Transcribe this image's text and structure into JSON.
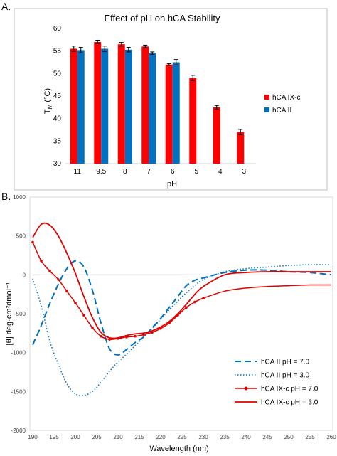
{
  "panels": {
    "a_label": "A.",
    "b_label": "B."
  },
  "chart_data": [
    {
      "type": "bar",
      "title": "Effect of pH on hCA Stability",
      "xlabel": "pH",
      "ylabel_main": "T",
      "ylabel_sub": "M",
      "ylabel_unit": " (°C)",
      "categories": [
        "11",
        "9.5",
        "8",
        "7",
        "6",
        "5",
        "4",
        "3"
      ],
      "ylim": [
        30,
        60
      ],
      "yticks": [
        30,
        35,
        40,
        45,
        50,
        55,
        60
      ],
      "grid": false,
      "legend": "right",
      "series": [
        {
          "name": "hCA IX-c",
          "color": "#ff0000",
          "values": [
            55.5,
            57.0,
            56.5,
            56.0,
            52.0,
            49.0,
            42.5,
            37.0
          ],
          "errors": [
            0.6,
            0.4,
            0.4,
            0.3,
            0.2,
            0.6,
            0.4,
            0.6
          ]
        },
        {
          "name": "hCA II",
          "color": "#0070c0",
          "values": [
            55.2,
            55.5,
            55.3,
            54.5,
            52.5,
            null,
            null,
            null
          ],
          "errors": [
            0.6,
            0.6,
            0.5,
            0.3,
            0.6,
            null,
            null,
            null
          ]
        }
      ]
    },
    {
      "type": "line",
      "xlabel": "Wavelength (nm)",
      "ylabel": "[θ] deg·cm²dmol⁻¹",
      "xlim": [
        190,
        260
      ],
      "ylim": [
        -2000,
        1000
      ],
      "xticks": [
        190,
        195,
        200,
        205,
        210,
        215,
        220,
        225,
        230,
        235,
        240,
        245,
        250,
        255,
        260
      ],
      "yticks": [
        1000,
        500,
        0,
        -500,
        -1000,
        -1500,
        -2000
      ],
      "grid": false,
      "legend": "bottom-right",
      "series": [
        {
          "name": "hCA II pH = 7.0",
          "color": "#0070c0",
          "style": "dashed",
          "x": [
            190,
            192,
            194,
            196,
            198,
            200,
            202,
            204,
            206,
            208,
            210,
            212,
            214,
            216,
            218,
            220,
            222,
            224,
            226,
            228,
            230,
            235,
            240,
            245,
            250,
            255,
            260
          ],
          "y": [
            -900,
            -650,
            -370,
            -120,
            80,
            180,
            100,
            -200,
            -620,
            -950,
            -1030,
            -960,
            -870,
            -800,
            -680,
            -560,
            -420,
            -280,
            -140,
            -70,
            -40,
            30,
            60,
            60,
            40,
            30,
            0
          ]
        },
        {
          "name": "hCA II pH = 3.0",
          "color": "#0070c0",
          "style": "dotted",
          "x": [
            190,
            192,
            194,
            196,
            198,
            200,
            202,
            204,
            206,
            208,
            210,
            212,
            214,
            216,
            218,
            220,
            222,
            224,
            226,
            228,
            230,
            235,
            240,
            245,
            250,
            255,
            260
          ],
          "y": [
            -50,
            -400,
            -850,
            -1150,
            -1400,
            -1530,
            -1550,
            -1500,
            -1380,
            -1240,
            -1120,
            -1020,
            -910,
            -800,
            -690,
            -570,
            -450,
            -340,
            -230,
            -140,
            -60,
            40,
            80,
            100,
            120,
            130,
            130
          ]
        },
        {
          "name": "hCA IX-c pH = 7.0",
          "color": "#e00000",
          "style": "marker",
          "x": [
            190,
            192,
            194,
            196,
            198,
            200,
            202,
            204,
            206,
            208,
            210,
            212,
            214,
            216,
            218,
            220,
            222,
            224,
            226,
            228,
            230,
            235,
            240,
            245,
            250,
            255,
            260
          ],
          "y": [
            420,
            180,
            50,
            -60,
            -210,
            -360,
            -520,
            -680,
            -790,
            -830,
            -820,
            -800,
            -790,
            -770,
            -740,
            -690,
            -620,
            -520,
            -420,
            -350,
            -300,
            -210,
            -170,
            -150,
            -140,
            -130,
            -130
          ]
        },
        {
          "name": "hCA IX-c pH = 3.0",
          "color": "#e00000",
          "style": "solid",
          "x": [
            190,
            192,
            194,
            196,
            198,
            200,
            202,
            204,
            206,
            208,
            210,
            212,
            214,
            216,
            218,
            220,
            222,
            224,
            226,
            228,
            230,
            235,
            240,
            245,
            250,
            255,
            260
          ],
          "y": [
            480,
            650,
            640,
            500,
            280,
            20,
            -280,
            -550,
            -740,
            -810,
            -810,
            -780,
            -760,
            -750,
            -720,
            -670,
            -600,
            -500,
            -380,
            -250,
            -150,
            0,
            30,
            40,
            40,
            40,
            40
          ]
        }
      ]
    }
  ]
}
